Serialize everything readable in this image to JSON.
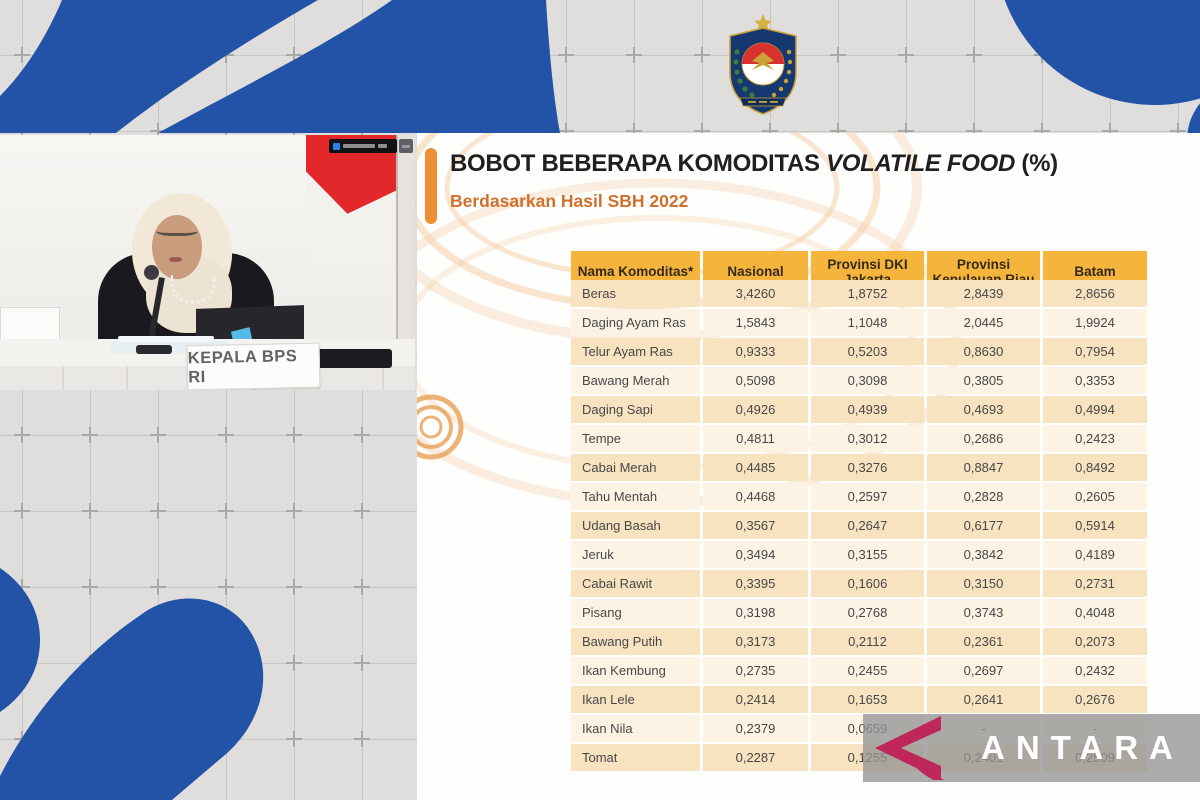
{
  "emblem": {
    "name": "kementerian-dalam-negeri-emblem"
  },
  "video": {
    "nameplate": "KEPALA BPS RI"
  },
  "slide": {
    "title": {
      "main": "BOBOT BEBERAPA KOMODITAS",
      "italic": "VOLATILE FOOD",
      "suffix": "(%)"
    },
    "subtitle": "Berdasarkan Hasil SBH 2022",
    "table": {
      "columns": [
        "Nama Komoditas*",
        "Nasional",
        "Provinsi DKI Jakarta",
        "Provinsi Kepulauan Riau",
        "Batam"
      ],
      "rows": [
        {
          "name": "Beras",
          "values": [
            "3,4260",
            "1,8752",
            "2,8439",
            "2,8656"
          ]
        },
        {
          "name": "Daging Ayam Ras",
          "values": [
            "1,5843",
            "1,1048",
            "2,0445",
            "1,9924"
          ]
        },
        {
          "name": "Telur Ayam Ras",
          "values": [
            "0,9333",
            "0,5203",
            "0,8630",
            "0,7954"
          ]
        },
        {
          "name": "Bawang Merah",
          "values": [
            "0,5098",
            "0,3098",
            "0,3805",
            "0,3353"
          ]
        },
        {
          "name": "Daging Sapi",
          "values": [
            "0,4926",
            "0,4939",
            "0,4693",
            "0,4994"
          ]
        },
        {
          "name": "Tempe",
          "values": [
            "0,4811",
            "0,3012",
            "0,2686",
            "0,2423"
          ]
        },
        {
          "name": "Cabai Merah",
          "values": [
            "0,4485",
            "0,3276",
            "0,8847",
            "0,8492"
          ]
        },
        {
          "name": "Tahu Mentah",
          "values": [
            "0,4468",
            "0,2597",
            "0,2828",
            "0,2605"
          ]
        },
        {
          "name": "Udang Basah",
          "values": [
            "0,3567",
            "0,2647",
            "0,6177",
            "0,5914"
          ]
        },
        {
          "name": "Jeruk",
          "values": [
            "0,3494",
            "0,3155",
            "0,3842",
            "0,4189"
          ]
        },
        {
          "name": "Cabai Rawit",
          "values": [
            "0,3395",
            "0,1606",
            "0,3150",
            "0,2731"
          ]
        },
        {
          "name": "Pisang",
          "values": [
            "0,3198",
            "0,2768",
            "0,3743",
            "0,4048"
          ]
        },
        {
          "name": "Bawang Putih",
          "values": [
            "0,3173",
            "0,2112",
            "0,2361",
            "0,2073"
          ]
        },
        {
          "name": "Ikan Kembung",
          "values": [
            "0,2735",
            "0,2455",
            "0,2697",
            "0,2432"
          ]
        },
        {
          "name": "Ikan Lele",
          "values": [
            "0,2414",
            "0,1653",
            "0,2641",
            "0,2676"
          ]
        },
        {
          "name": "Ikan Nila",
          "values": [
            "0,2379",
            "0,0659",
            "-",
            "-"
          ]
        },
        {
          "name": "Tomat",
          "values": [
            "0,2287",
            "0,1255",
            "0,2401",
            "0,2509"
          ]
        }
      ]
    }
  },
  "watermark": {
    "brand": "ANTARA"
  },
  "colors": {
    "blob_blue": "#2353A7",
    "header_orange": "#F5B53C",
    "accent_orange": "#ED8F35",
    "subtitle_orange": "#D0702E",
    "row_peach": "#F8E3C1",
    "row_cream": "#FCF3E5",
    "watermark_red": "#BE265C",
    "flag_red": "#E3282C"
  },
  "chart_data": {
    "type": "table",
    "title": "BOBOT BEBERAPA KOMODITAS VOLATILE FOOD (%) — Berdasarkan Hasil SBH 2022",
    "columns": [
      "Nama Komoditas*",
      "Nasional",
      "Provinsi DKI Jakarta",
      "Provinsi Kepulauan Riau",
      "Batam"
    ],
    "rows": [
      [
        "Beras",
        3.426,
        1.8752,
        2.8439,
        2.8656
      ],
      [
        "Daging Ayam Ras",
        1.5843,
        1.1048,
        2.0445,
        1.9924
      ],
      [
        "Telur Ayam Ras",
        0.9333,
        0.5203,
        0.863,
        0.7954
      ],
      [
        "Bawang Merah",
        0.5098,
        0.3098,
        0.3805,
        0.3353
      ],
      [
        "Daging Sapi",
        0.4926,
        0.4939,
        0.4693,
        0.4994
      ],
      [
        "Tempe",
        0.4811,
        0.3012,
        0.2686,
        0.2423
      ],
      [
        "Cabai Merah",
        0.4485,
        0.3276,
        0.8847,
        0.8492
      ],
      [
        "Tahu Mentah",
        0.4468,
        0.2597,
        0.2828,
        0.2605
      ],
      [
        "Udang Basah",
        0.3567,
        0.2647,
        0.6177,
        0.5914
      ],
      [
        "Jeruk",
        0.3494,
        0.3155,
        0.3842,
        0.4189
      ],
      [
        "Cabai Rawit",
        0.3395,
        0.1606,
        0.315,
        0.2731
      ],
      [
        "Pisang",
        0.3198,
        0.2768,
        0.3743,
        0.4048
      ],
      [
        "Bawang Putih",
        0.3173,
        0.2112,
        0.2361,
        0.2073
      ],
      [
        "Ikan Kembung",
        0.2735,
        0.2455,
        0.2697,
        0.2432
      ],
      [
        "Ikan Lele",
        0.2414,
        0.1653,
        0.2641,
        0.2676
      ],
      [
        "Ikan Nila",
        0.2379,
        0.0659,
        null,
        null
      ],
      [
        "Tomat",
        0.2287,
        0.1255,
        0.2401,
        0.2509
      ]
    ]
  }
}
